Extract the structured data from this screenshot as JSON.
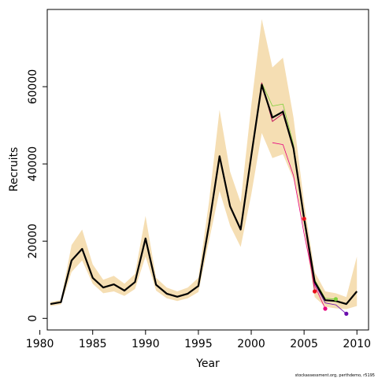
{
  "chart_data": {
    "type": "line",
    "title": "",
    "xlabel": "Year",
    "ylabel": "Recruits",
    "xlim": [
      1980.7,
      2011.1
    ],
    "ylim": [
      -3000,
      80000
    ],
    "x_ticks": [
      1980,
      1985,
      1990,
      1995,
      2000,
      2005,
      2010
    ],
    "y_ticks": [
      0,
      20000,
      40000,
      60000
    ],
    "grid": false,
    "legend": "none",
    "band": {
      "color": "#f5deb3",
      "x": [
        1981,
        1982,
        1983,
        1984,
        1985,
        1986,
        1987,
        1988,
        1989,
        1990,
        1991,
        1992,
        1993,
        1994,
        1995,
        1996,
        1997,
        1998,
        1999,
        2000,
        2001,
        2002,
        2003,
        2004,
        2005,
        2006,
        2007,
        2008,
        2009,
        2010
      ],
      "lower": [
        3200,
        3600,
        12000,
        15000,
        9000,
        6500,
        7000,
        5800,
        7600,
        16000,
        7200,
        5200,
        4500,
        5200,
        6800,
        20000,
        33000,
        24000,
        18500,
        32000,
        48000,
        41500,
        42500,
        36000,
        23000,
        5500,
        3000,
        2600,
        2400,
        3200
      ],
      "upper": [
        4200,
        4800,
        19000,
        23000,
        14000,
        10000,
        11000,
        9000,
        11500,
        26500,
        10500,
        8000,
        7000,
        8000,
        10500,
        30000,
        54000,
        38000,
        30000,
        55000,
        77500,
        65000,
        67500,
        52000,
        30000,
        12000,
        7000,
        6500,
        5500,
        16000
      ]
    },
    "series": [
      {
        "color": "#000000",
        "width": 2.2,
        "x": [
          1981,
          1982,
          1983,
          1984,
          1985,
          1986,
          1987,
          1988,
          1989,
          1990,
          1991,
          1992,
          1993,
          1994,
          1995,
          1996,
          1997,
          1998,
          1999,
          2000,
          2001,
          2002,
          2003,
          2004,
          2005,
          2006,
          2007,
          2008,
          2009,
          2010
        ],
        "y": [
          3700,
          4200,
          15000,
          18000,
          10500,
          8000,
          8800,
          7200,
          9400,
          20700,
          8700,
          6400,
          5600,
          6400,
          8400,
          24000,
          42000,
          29000,
          23000,
          42000,
          60500,
          52000,
          53500,
          44000,
          26000,
          9500,
          4700,
          4500,
          3700,
          7000
        ]
      },
      {
        "color": "#c2185b",
        "width": 1.0,
        "x": [
          1981,
          1982,
          1983,
          1984,
          1985,
          1986,
          1987,
          1988,
          1989,
          1990,
          1991,
          1992,
          1993,
          1994,
          1995,
          1996,
          1997,
          1998,
          1999,
          2000,
          2001,
          2002,
          2003,
          2004,
          2005,
          2006
        ],
        "y": [
          3700,
          4200,
          15000,
          18000,
          10500,
          8000,
          8800,
          7200,
          9400,
          20700,
          8700,
          6400,
          5600,
          6400,
          8400,
          24000,
          42000,
          29000,
          23000,
          42000,
          61000,
          51000,
          53000,
          44000,
          25800,
          7000
        ]
      },
      {
        "color": "#e6007e",
        "width": 0.8,
        "x": [
          2002,
          2003,
          2004,
          2005,
          2006,
          2007
        ],
        "y": [
          45500,
          45000,
          37000,
          22000,
          8500,
          2500
        ]
      },
      {
        "color": "#7fd13b",
        "width": 0.8,
        "x": [
          2001,
          2002,
          2003,
          2004,
          2005,
          2006,
          2007,
          2008
        ],
        "y": [
          61000,
          55000,
          55500,
          45000,
          26000,
          10000,
          5200,
          5000
        ]
      },
      {
        "color": "#6a0dad",
        "width": 0.8,
        "x": [
          2003,
          2004,
          2005,
          2006,
          2007,
          2008,
          2009
        ],
        "y": [
          54000,
          44500,
          26500,
          9000,
          4000,
          3500,
          1200
        ]
      }
    ],
    "endpoints": [
      {
        "color": "#e8101b",
        "x": 2005,
        "y": 25800
      },
      {
        "color": "#e8101b",
        "x": 2006,
        "y": 7000
      },
      {
        "color": "#e6007e",
        "x": 2007,
        "y": 2500
      },
      {
        "color": "#7fd13b",
        "x": 2008,
        "y": 5000
      },
      {
        "color": "#6a0dad",
        "x": 2009,
        "y": 1200
      }
    ]
  },
  "footer": "stockassessment.org, perthdemo, r5195"
}
